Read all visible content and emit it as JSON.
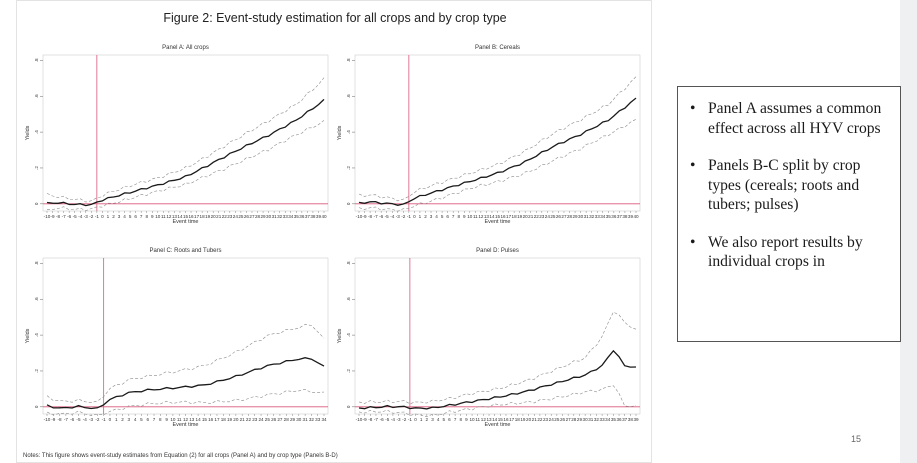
{
  "figure": {
    "title": "Figure 2: Event-study estimation for all crops and by crop type",
    "notes": "Notes: This figure shows event-study estimates from Equation (2) for all crops (Panel A) and by crop type (Panels B-D)"
  },
  "bullets": [
    "Panel A assumes a common effect across all HYV crops",
    "Panels B-C split by crop types (cereals; roots and tubers; pulses)",
    "We also report results by individual crops in"
  ],
  "page_number": "15",
  "colors": {
    "estimate": "#1a1a1a",
    "ci": "#8a8a8a",
    "reference": "#d9587a",
    "frame": "#cfcfcf"
  },
  "chart_data": [
    {
      "type": "line",
      "title": "Panel A: All crops",
      "xlabel": "Event time",
      "ylabel": "Yields",
      "x_start": -10,
      "x_end": 40,
      "x_tick_labels": [
        "-10",
        "-9",
        "-8",
        "-7",
        "-6",
        "-5",
        "-4",
        "-3",
        "-2",
        "-1",
        "0",
        "1",
        "2",
        "3",
        "4",
        "5",
        "6",
        "7",
        "8",
        "9",
        "10",
        "11",
        "12",
        "13",
        "14",
        "15",
        "16",
        "17",
        "18",
        "19",
        "20",
        "21",
        "22",
        "23",
        "24",
        "25",
        "26",
        "27",
        "28",
        "29",
        "30",
        "31",
        "32",
        "33",
        "34",
        "35",
        "36",
        "37",
        "38",
        "39",
        "40"
      ],
      "ylim": [
        -0.4,
        8.3
      ],
      "y_ticks": [
        0,
        2,
        4,
        6,
        8
      ],
      "y_tick_labels": [
        "0",
        ".2",
        ".4",
        ".6",
        ".8"
      ],
      "event_line": -1,
      "zero_line": 0,
      "series": [
        {
          "role": "estimate",
          "anchors": [
            [
              -10,
              0.05
            ],
            [
              -8,
              0.1
            ],
            [
              -5,
              0.0
            ],
            [
              -2,
              -0.05
            ],
            [
              0,
              0.2
            ],
            [
              5,
              0.6
            ],
            [
              10,
              1.05
            ],
            [
              15,
              1.55
            ],
            [
              20,
              2.3
            ],
            [
              25,
              3.05
            ],
            [
              30,
              3.8
            ],
            [
              35,
              4.7
            ],
            [
              40,
              5.8
            ]
          ]
        },
        {
          "role": "upper",
          "anchors": [
            [
              -10,
              0.55
            ],
            [
              -8,
              0.45
            ],
            [
              -5,
              0.3
            ],
            [
              -2,
              0.15
            ],
            [
              0,
              0.45
            ],
            [
              5,
              0.95
            ],
            [
              10,
              1.45
            ],
            [
              15,
              2.05
            ],
            [
              20,
              2.85
            ],
            [
              25,
              3.7
            ],
            [
              30,
              4.6
            ],
            [
              35,
              5.6
            ],
            [
              40,
              7.0
            ]
          ]
        },
        {
          "role": "lower",
          "anchors": [
            [
              -10,
              -0.45
            ],
            [
              -8,
              -0.25
            ],
            [
              -5,
              -0.3
            ],
            [
              -2,
              -0.25
            ],
            [
              0,
              -0.05
            ],
            [
              5,
              0.3
            ],
            [
              10,
              0.65
            ],
            [
              15,
              1.05
            ],
            [
              20,
              1.75
            ],
            [
              25,
              2.4
            ],
            [
              30,
              3.0
            ],
            [
              35,
              3.8
            ],
            [
              40,
              4.6
            ]
          ]
        }
      ]
    },
    {
      "type": "line",
      "title": "Panel B: Cereals",
      "xlabel": "Event time",
      "ylabel": "Yields",
      "x_start": -10,
      "x_end": 40,
      "x_tick_labels": [
        "-10",
        "-9",
        "-8",
        "-7",
        "-6",
        "-5",
        "-4",
        "-3",
        "-2",
        "-1",
        "0",
        "1",
        "2",
        "3",
        "4",
        "5",
        "6",
        "7",
        "8",
        "9",
        "10",
        "11",
        "12",
        "13",
        "14",
        "15",
        "16",
        "17",
        "18",
        "19",
        "20",
        "21",
        "22",
        "23",
        "24",
        "25",
        "26",
        "27",
        "28",
        "29",
        "30",
        "31",
        "32",
        "33",
        "34",
        "35",
        "36",
        "37",
        "38",
        "39",
        "40"
      ],
      "ylim": [
        -0.4,
        8.3
      ],
      "y_ticks": [
        0,
        2,
        4,
        6,
        8
      ],
      "y_tick_labels": [
        "0",
        ".2",
        ".4",
        ".6",
        ".8"
      ],
      "event_line": -1,
      "zero_line": 0,
      "series": [
        {
          "role": "estimate",
          "anchors": [
            [
              -10,
              0.05
            ],
            [
              -8,
              0.15
            ],
            [
              -5,
              0.05
            ],
            [
              -2,
              -0.05
            ],
            [
              0,
              0.3
            ],
            [
              5,
              0.75
            ],
            [
              10,
              1.25
            ],
            [
              15,
              1.75
            ],
            [
              20,
              2.35
            ],
            [
              25,
              3.15
            ],
            [
              30,
              3.85
            ],
            [
              35,
              4.7
            ],
            [
              40,
              5.9
            ]
          ]
        },
        {
          "role": "upper",
          "anchors": [
            [
              -10,
              0.5
            ],
            [
              -8,
              0.55
            ],
            [
              -5,
              0.4
            ],
            [
              -2,
              0.2
            ],
            [
              0,
              0.65
            ],
            [
              5,
              1.15
            ],
            [
              10,
              1.7
            ],
            [
              15,
              2.25
            ],
            [
              20,
              2.95
            ],
            [
              25,
              3.85
            ],
            [
              30,
              4.65
            ],
            [
              35,
              5.6
            ],
            [
              40,
              7.1
            ]
          ]
        },
        {
          "role": "lower",
          "anchors": [
            [
              -10,
              -0.35
            ],
            [
              -8,
              -0.25
            ],
            [
              -5,
              -0.3
            ],
            [
              -2,
              -0.3
            ],
            [
              0,
              -0.05
            ],
            [
              5,
              0.35
            ],
            [
              10,
              0.8
            ],
            [
              15,
              1.2
            ],
            [
              20,
              1.75
            ],
            [
              25,
              2.45
            ],
            [
              30,
              3.05
            ],
            [
              35,
              3.8
            ],
            [
              40,
              4.7
            ]
          ]
        }
      ]
    },
    {
      "type": "line",
      "title": "Panel C: Roots and Tubers",
      "xlabel": "Event time",
      "ylabel": "Yields",
      "x_start": -10,
      "x_end": 34,
      "x_tick_labels": [
        "-10",
        "-9",
        "-8",
        "-7",
        "-6",
        "-5",
        "-4",
        "-3",
        "-2",
        "-1",
        "0",
        "1",
        "2",
        "3",
        "4",
        "5",
        "6",
        "7",
        "8",
        "9",
        "10",
        "11",
        "12",
        "13",
        "14",
        "15",
        "16",
        "17",
        "18",
        "19",
        "20",
        "21",
        "22",
        "23",
        "24",
        "25",
        "26",
        "27",
        "28",
        "29",
        "30",
        "31",
        "32",
        "33",
        "34"
      ],
      "ylim": [
        -0.4,
        8.3
      ],
      "y_ticks": [
        0,
        2,
        4,
        6,
        8
      ],
      "y_tick_labels": [
        "0",
        ".2",
        ".4",
        ".6",
        ".8"
      ],
      "event_line": -1,
      "zero_line": 0,
      "series": [
        {
          "role": "estimate",
          "anchors": [
            [
              -10,
              0.1
            ],
            [
              -8,
              -0.05
            ],
            [
              -5,
              0.05
            ],
            [
              -2,
              -0.1
            ],
            [
              0,
              0.4
            ],
            [
              3,
              0.75
            ],
            [
              6,
              0.9
            ],
            [
              10,
              1.05
            ],
            [
              15,
              1.25
            ],
            [
              20,
              1.7
            ],
            [
              25,
              2.25
            ],
            [
              30,
              2.65
            ],
            [
              32,
              2.7
            ],
            [
              34,
              2.25
            ]
          ]
        },
        {
          "role": "upper",
          "anchors": [
            [
              -10,
              0.6
            ],
            [
              -8,
              0.35
            ],
            [
              -5,
              0.4
            ],
            [
              -2,
              0.25
            ],
            [
              0,
              1.0
            ],
            [
              3,
              1.45
            ],
            [
              6,
              1.65
            ],
            [
              10,
              1.95
            ],
            [
              15,
              2.35
            ],
            [
              20,
              3.05
            ],
            [
              25,
              3.9
            ],
            [
              30,
              4.4
            ],
            [
              32,
              4.6
            ],
            [
              34,
              3.8
            ]
          ]
        },
        {
          "role": "lower",
          "anchors": [
            [
              -10,
              -0.4
            ],
            [
              -8,
              -0.45
            ],
            [
              -5,
              -0.3
            ],
            [
              -2,
              -0.45
            ],
            [
              0,
              -0.2
            ],
            [
              3,
              0.05
            ],
            [
              6,
              0.15
            ],
            [
              10,
              0.2
            ],
            [
              15,
              0.2
            ],
            [
              20,
              0.4
            ],
            [
              25,
              0.7
            ],
            [
              30,
              0.9
            ],
            [
              32,
              0.8
            ],
            [
              34,
              0.7
            ]
          ]
        }
      ]
    },
    {
      "type": "line",
      "title": "Panel D: Pulses",
      "xlabel": "Event time",
      "ylabel": "Yields",
      "x_start": -10,
      "x_end": 39,
      "x_tick_labels": [
        "-10",
        "-9",
        "-8",
        "-7",
        "-6",
        "-5",
        "-4",
        "-3",
        "-2",
        "-1",
        "0",
        "1",
        "2",
        "3",
        "4",
        "5",
        "6",
        "7",
        "8",
        "9",
        "10",
        "11",
        "12",
        "13",
        "14",
        "15",
        "16",
        "17",
        "18",
        "19",
        "20",
        "21",
        "22",
        "23",
        "24",
        "25",
        "26",
        "27",
        "28",
        "29",
        "30",
        "31",
        "32",
        "33",
        "34",
        "35",
        "36",
        "37",
        "38",
        "39"
      ],
      "ylim": [
        -0.4,
        8.3
      ],
      "y_ticks": [
        0,
        2,
        4,
        6,
        8
      ],
      "y_tick_labels": [
        "0",
        ".2",
        ".4",
        ".6",
        ".8"
      ],
      "event_line": -1,
      "zero_line": 0,
      "series": [
        {
          "role": "estimate",
          "anchors": [
            [
              -10,
              -0.05
            ],
            [
              -5,
              0.05
            ],
            [
              -2,
              0.0
            ],
            [
              0,
              -0.1
            ],
            [
              3,
              -0.1
            ],
            [
              6,
              0.05
            ],
            [
              10,
              0.3
            ],
            [
              15,
              0.6
            ],
            [
              20,
              0.9
            ],
            [
              25,
              1.3
            ],
            [
              30,
              1.75
            ],
            [
              33,
              2.3
            ],
            [
              35,
              3.2
            ],
            [
              37,
              2.35
            ],
            [
              39,
              2.2
            ]
          ]
        },
        {
          "role": "upper",
          "anchors": [
            [
              -10,
              0.3
            ],
            [
              -5,
              0.35
            ],
            [
              -2,
              0.3
            ],
            [
              0,
              0.2
            ],
            [
              3,
              0.25
            ],
            [
              6,
              0.4
            ],
            [
              10,
              0.75
            ],
            [
              15,
              1.1
            ],
            [
              20,
              1.5
            ],
            [
              25,
              2.05
            ],
            [
              30,
              2.7
            ],
            [
              33,
              3.9
            ],
            [
              35,
              5.4
            ],
            [
              37,
              4.8
            ],
            [
              39,
              4.3
            ]
          ]
        },
        {
          "role": "lower",
          "anchors": [
            [
              -10,
              -0.35
            ],
            [
              -5,
              -0.25
            ],
            [
              -2,
              -0.3
            ],
            [
              0,
              -0.4
            ],
            [
              3,
              -0.45
            ],
            [
              6,
              -0.3
            ],
            [
              10,
              -0.15
            ],
            [
              15,
              0.1
            ],
            [
              20,
              0.3
            ],
            [
              25,
              0.55
            ],
            [
              30,
              0.8
            ],
            [
              33,
              0.9
            ],
            [
              35,
              1.2
            ],
            [
              37,
              0.05
            ],
            [
              39,
              0.0
            ]
          ]
        }
      ]
    }
  ]
}
